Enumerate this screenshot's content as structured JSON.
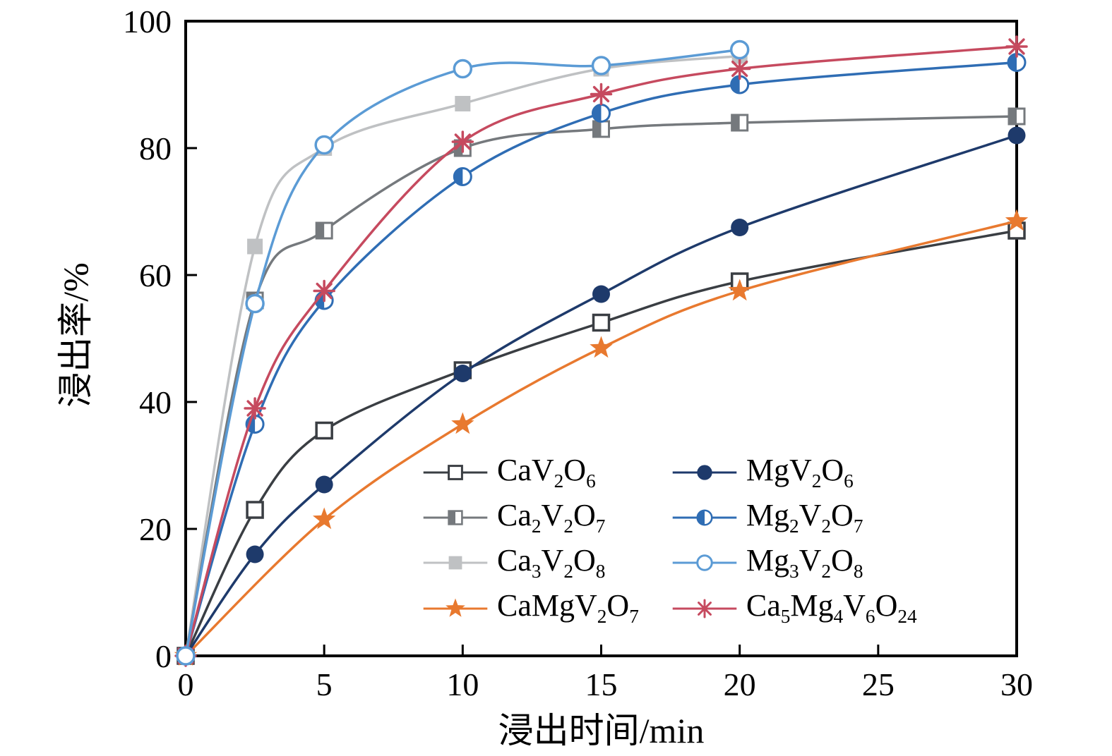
{
  "chart_data": {
    "type": "line",
    "title": "",
    "xlabel": "浸出时间/min",
    "ylabel": "浸出率/%",
    "xlim": [
      0,
      30
    ],
    "ylim": [
      0,
      100
    ],
    "xticks": [
      0,
      5,
      10,
      15,
      20,
      25,
      30
    ],
    "yticks": [
      0,
      20,
      40,
      60,
      80,
      100
    ],
    "grid": false,
    "legend_position": "inside-lower-center",
    "series": [
      {
        "name": "Ca3V2O8",
        "marker": "filled-square",
        "color": "#bfc1c3",
        "x": [
          0,
          2.5,
          5,
          10,
          15,
          20
        ],
        "y": [
          0,
          64.5,
          80,
          87,
          92.5,
          94.5
        ]
      },
      {
        "name": "Ca2V2O7",
        "marker": "half-square",
        "color": "#75797d",
        "x": [
          0,
          2.5,
          5,
          10,
          15,
          20,
          30
        ],
        "y": [
          0,
          56,
          67,
          80,
          83,
          84,
          85
        ]
      },
      {
        "name": "CaV2O6",
        "marker": "open-square",
        "color": "#3a3e43",
        "x": [
          0,
          2.5,
          5,
          10,
          15,
          20,
          30
        ],
        "y": [
          0,
          23,
          35.5,
          45,
          52.5,
          59,
          67
        ]
      },
      {
        "name": "CaMgV2O7",
        "marker": "star",
        "color": "#e8792f",
        "x": [
          0,
          5,
          10,
          15,
          20,
          30
        ],
        "y": [
          0,
          21.5,
          36.5,
          48.5,
          57.5,
          68.5
        ]
      },
      {
        "name": "MgV2O6",
        "marker": "filled-circle",
        "color": "#1e3a6b",
        "x": [
          0,
          2.5,
          5,
          10,
          15,
          20,
          30
        ],
        "y": [
          0,
          16,
          27,
          44.5,
          57,
          67.5,
          82
        ]
      },
      {
        "name": "Mg2V2O7",
        "marker": "half-circle",
        "color": "#2f6db4",
        "x": [
          0,
          2.5,
          5,
          10,
          15,
          20,
          30
        ],
        "y": [
          0,
          36.5,
          56,
          75.5,
          85.5,
          90,
          93.5
        ]
      },
      {
        "name": "Ca5Mg4V6O24",
        "marker": "asterisk",
        "color": "#c64a5f",
        "x": [
          0,
          2.5,
          5,
          10,
          15,
          20,
          30
        ],
        "y": [
          0,
          39,
          57.5,
          81,
          88.5,
          92.5,
          96
        ]
      },
      {
        "name": "Mg3V2O8",
        "marker": "open-circle",
        "color": "#5b9bd5",
        "x": [
          0,
          2.5,
          5,
          10,
          15,
          20
        ],
        "y": [
          0,
          55.5,
          80.5,
          92.5,
          93,
          95.5
        ]
      }
    ],
    "legend": {
      "columns": 2,
      "order": [
        "CaV2O6",
        "MgV2O6",
        "Ca2V2O7",
        "Mg2V2O7",
        "Ca3V2O8",
        "Mg3V2O8",
        "CaMgV2O7",
        "Ca5Mg4V6O24"
      ]
    }
  }
}
